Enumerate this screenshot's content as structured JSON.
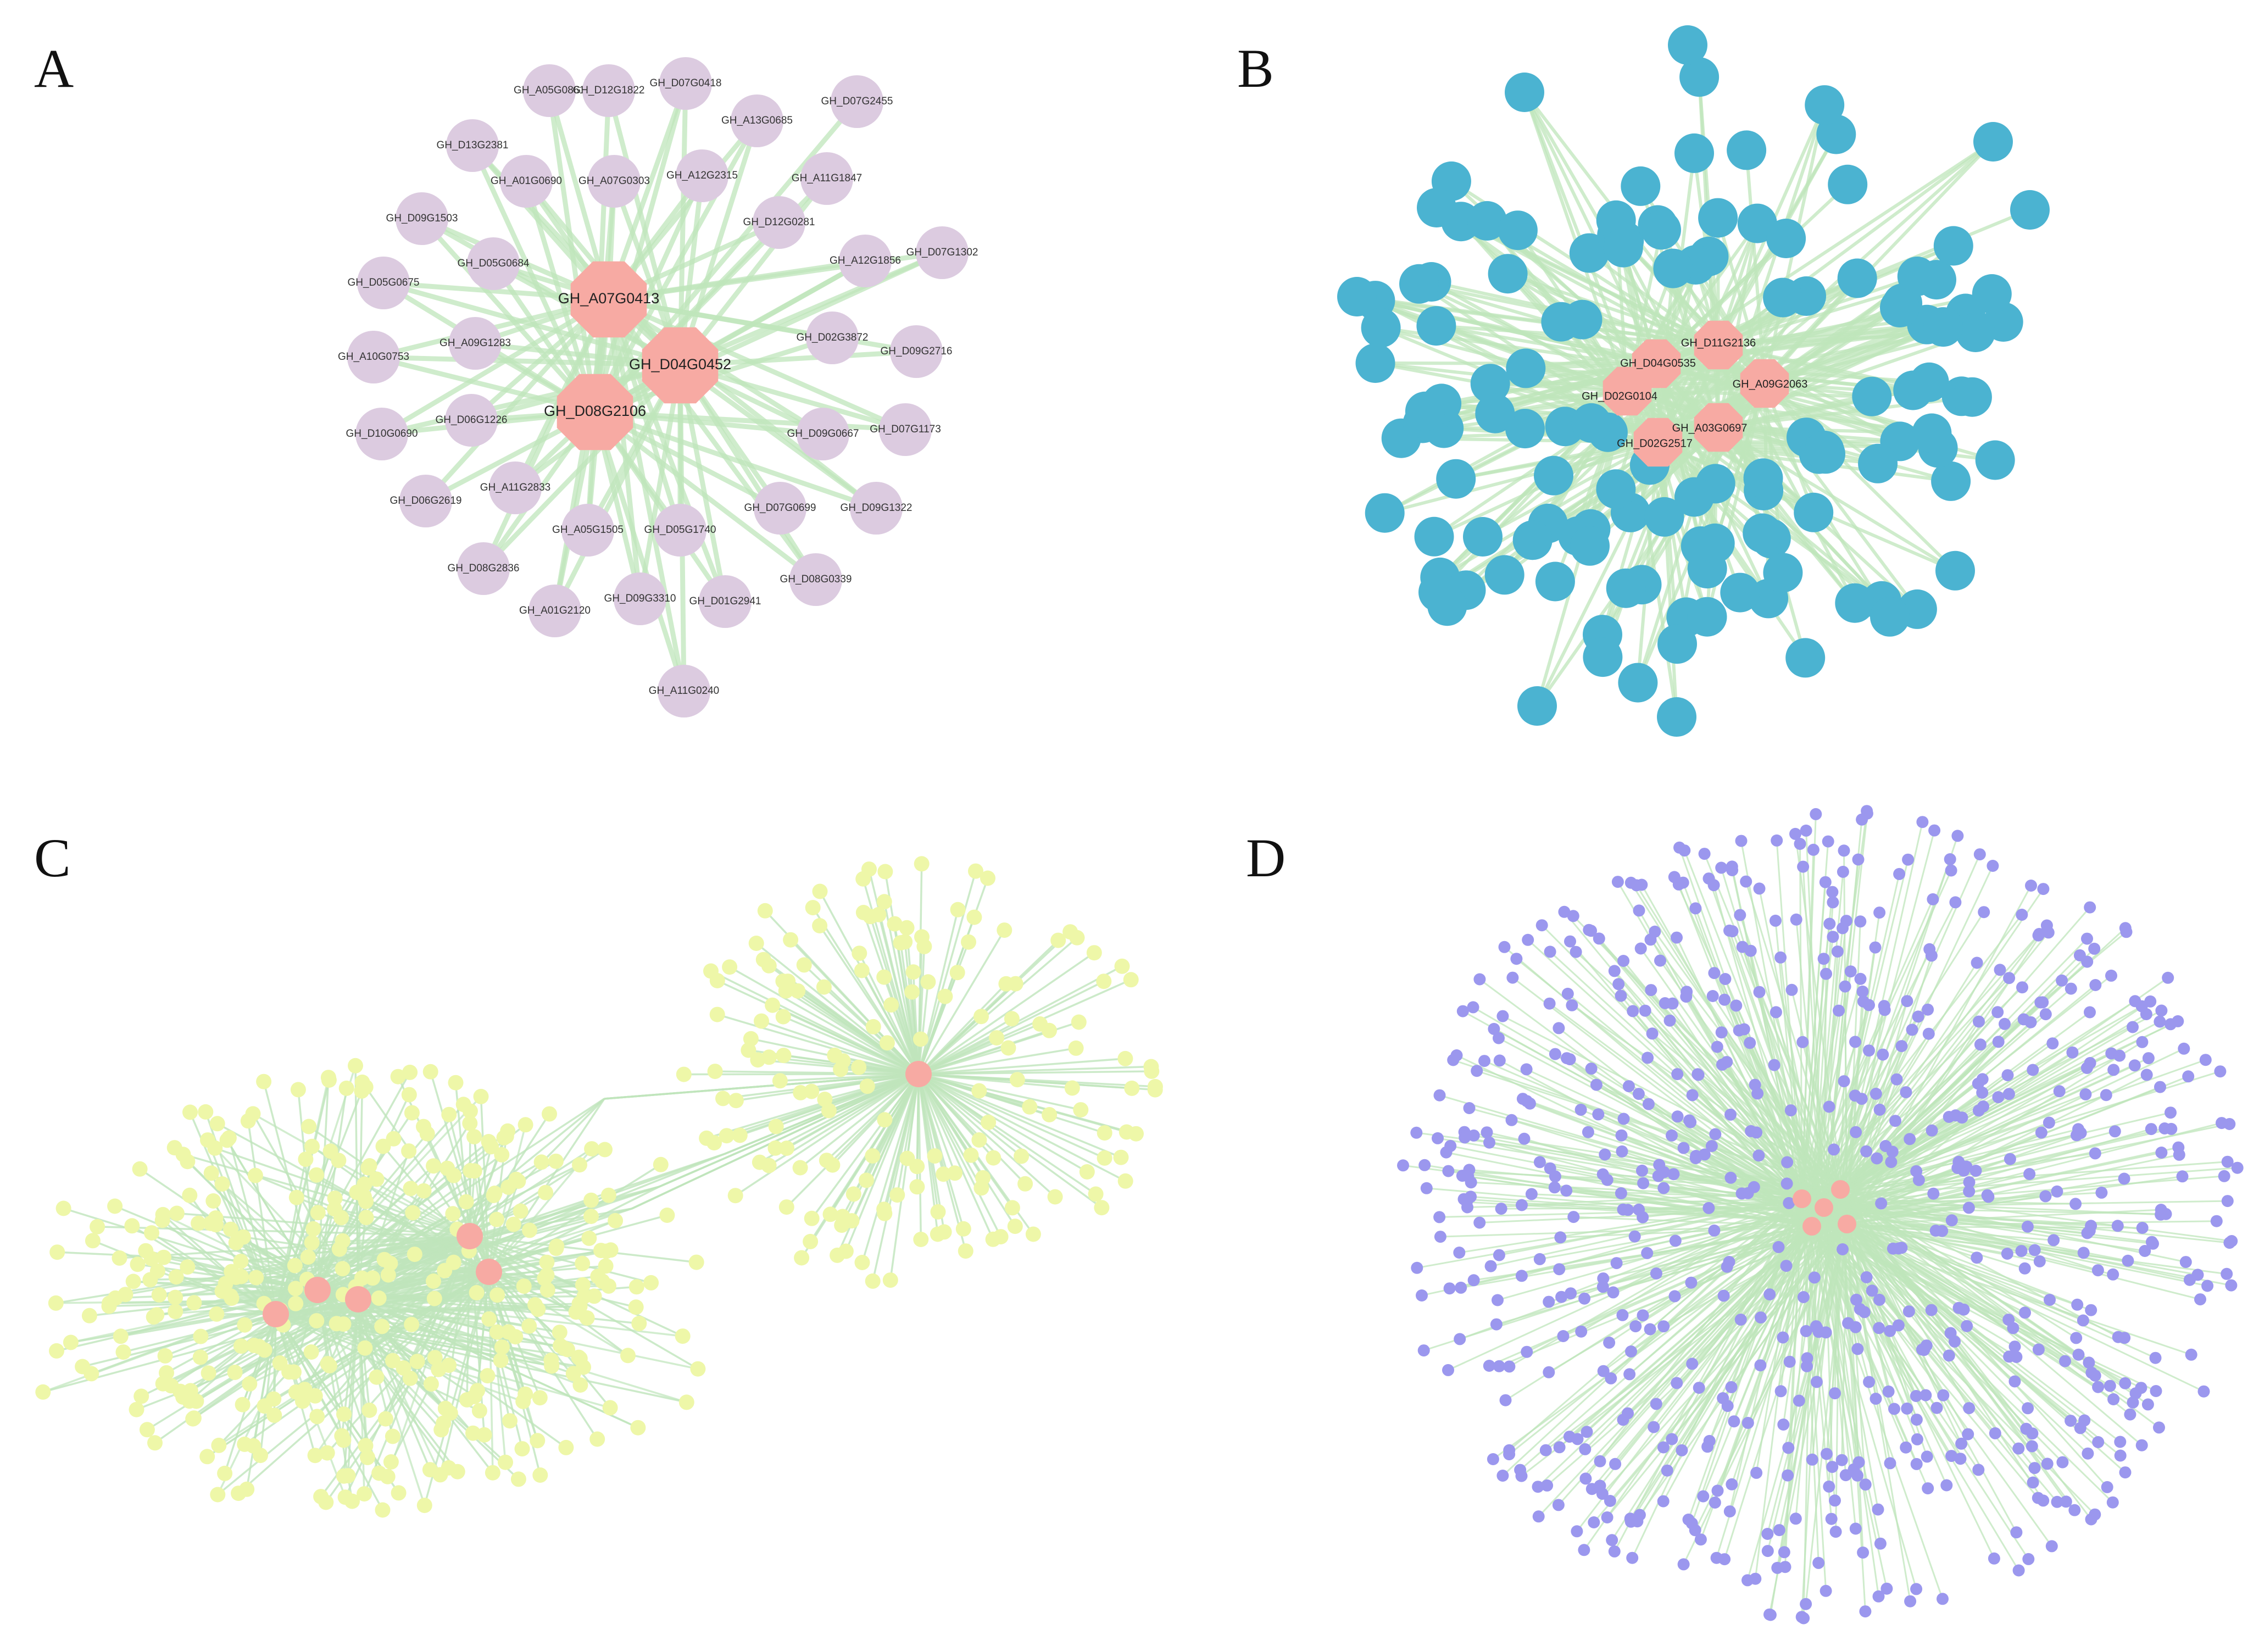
{
  "colors": {
    "edge": "#bfe5bb",
    "hub": "#f7aaa3",
    "panel_a_node": "#dccbe0",
    "panel_b_node": "#4bb3d1",
    "panel_c_node": "#eef7a8",
    "panel_d_node": "#9b97ee"
  },
  "panels": [
    {
      "letter": "A",
      "hubs": [
        "GH_A07G0413",
        "GH_D04G0452",
        "GH_D08G2106"
      ],
      "nodes": [
        "GH_A05G0861",
        "GH_D12G1822",
        "GH_D07G0418",
        "GH_D07G2455",
        "GH_A13G0685",
        "GH_D13G2381",
        "GH_A01G0690",
        "GH_A07G0303",
        "GH_A12G2315",
        "GH_A11G1847",
        "GH_D09G1503",
        "GH_D05G0684",
        "GH_D12G0281",
        "GH_A12G1856",
        "GH_D07G1302",
        "GH_D05G0675",
        "GH_D02G3872",
        "GH_D09G2716",
        "GH_A10G0753",
        "GH_A09G1283",
        "GH_D10G0690",
        "GH_D06G1226",
        "GH_D09G0667",
        "GH_D07G1173",
        "GH_D06G2619",
        "GH_A11G2833",
        "GH_D07G0699",
        "GH_D09G1322",
        "GH_A05G1505",
        "GH_D05G1740",
        "GH_D08G2836",
        "GH_D08G0339",
        "GH_A01G2120",
        "GH_D09G3310",
        "GH_D01G2941",
        "GH_A11G0240"
      ]
    },
    {
      "letter": "B",
      "hubs": [
        "GH_D11G2136",
        "GH_D04G0535",
        "GH_A09G2063",
        "GH_D02G0104",
        "GH_A03G0697",
        "GH_D02G2517"
      ]
    },
    {
      "letter": "C"
    },
    {
      "letter": "D"
    }
  ]
}
